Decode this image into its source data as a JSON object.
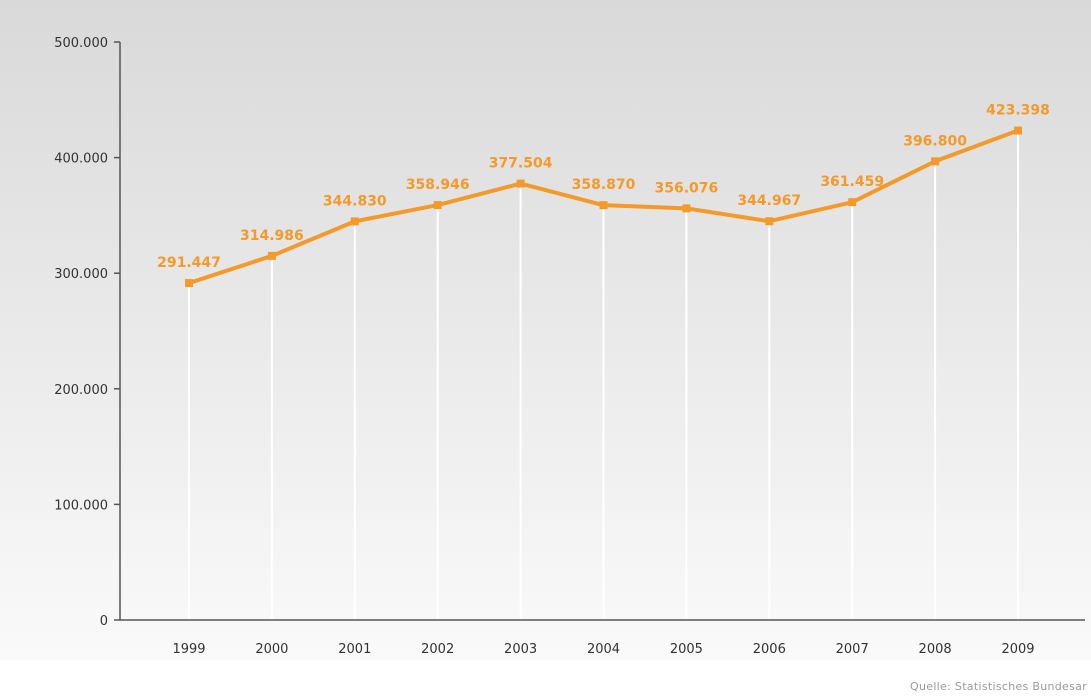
{
  "chart_data": {
    "type": "line",
    "categories": [
      "1999",
      "2000",
      "2001",
      "2002",
      "2003",
      "2004",
      "2005",
      "2006",
      "2007",
      "2008",
      "2009"
    ],
    "series": [
      {
        "values": [
          291447,
          314986,
          344830,
          358946,
          377504,
          358870,
          356076,
          344967,
          361459,
          396800,
          423398
        ],
        "labels": [
          "291.447",
          "314.986",
          "344.830",
          "358.946",
          "377.504",
          "358.870",
          "356.076",
          "344.967",
          "361.459",
          "396.800",
          "423.398"
        ]
      }
    ],
    "ylim": [
      0,
      500000
    ],
    "yticks": [
      0,
      100000,
      200000,
      300000,
      400000,
      500000
    ],
    "ytick_labels": [
      "0",
      "100.000",
      "200.000",
      "300.000",
      "400.000",
      "500.000"
    ],
    "grid": false,
    "title": "",
    "xlabel": "",
    "ylabel": "",
    "colors": {
      "line": "#f39a2a",
      "label": "#f39a2a",
      "background_top": "#d9d9d9",
      "background_bottom": "#fafafa"
    }
  },
  "source": "Quelle: Statistisches Bundesar"
}
